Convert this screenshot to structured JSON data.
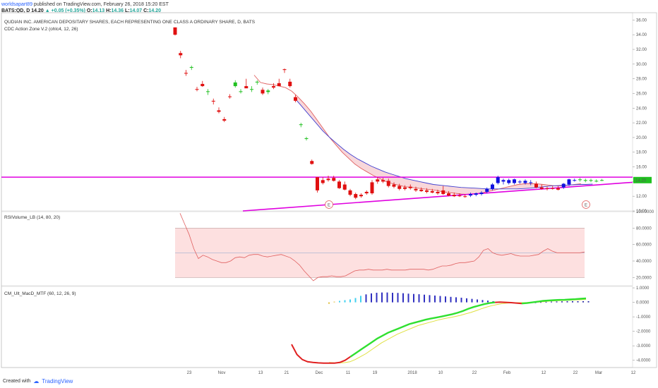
{
  "header": {
    "user": "worldsapart89",
    "published": "published on TradingView.com, February 26, 2018 15:20 EST",
    "symbol": "BATS:QD, D",
    "last": "14.20",
    "change_arrow": "▲",
    "change": "+0.05 (+0.35%)",
    "o_label": "O:",
    "o_val": "14.13",
    "h_label": "H:",
    "h_val": "14.36",
    "l_label": "L:",
    "l_val": "14.07",
    "c_label": "C:",
    "c_val": "14.20"
  },
  "footer": {
    "created_with": "Created with",
    "brand": "TradingView"
  },
  "colors": {
    "bull": "#1010e0",
    "bear": "#e01010",
    "neutral": "#20c020",
    "magenta": "#e000e0",
    "fill": "#f5c6cb",
    "fast": "#e06060",
    "slow": "#4040d0",
    "rsiband": "#fde0e0"
  },
  "chart_data": [
    {
      "type": "candlestick",
      "title": "QUDIAN INC. AMERICAN DEPOSITARY SHARES, EACH REPRESENTING ONE CLASS A ORDINARY SHARE, D, BATS",
      "indicator": "CDC Action Zone V.2 (ohlc4, 12, 26)",
      "ylim": [
        10,
        37
      ],
      "yticks": [
        "36.00",
        "34.00",
        "32.00",
        "30.00",
        "28.00",
        "26.00",
        "24.00",
        "22.00",
        "20.00",
        "18.00",
        "16.00",
        "14.00",
        "12.00",
        "10.00"
      ],
      "last_price_label": "14.20",
      "markers": [
        "E",
        "E"
      ],
      "candles": [
        [
          35.0,
          35.0,
          33.9,
          34.0
        ],
        [
          31.5,
          31.8,
          30.8,
          31.2
        ],
        [
          28.8,
          29.2,
          28.4,
          28.7
        ],
        [
          29.5,
          29.8,
          29.2,
          29.6
        ],
        [
          26.6,
          26.9,
          26.3,
          26.5
        ],
        [
          27.3,
          27.7,
          26.9,
          27.0
        ],
        [
          26.2,
          26.6,
          25.8,
          26.3
        ],
        [
          25.0,
          25.3,
          24.5,
          24.9
        ],
        [
          23.7,
          24.1,
          23.3,
          23.5
        ],
        [
          22.5,
          22.8,
          22.1,
          22.3
        ],
        [
          25.6,
          25.9,
          25.3,
          25.5
        ],
        [
          27.0,
          27.8,
          26.8,
          27.5
        ],
        [
          26.2,
          26.6,
          26.0,
          26.3
        ],
        [
          27.0,
          28.0,
          26.8,
          26.7
        ],
        [
          26.5,
          27.0,
          26.2,
          26.6
        ],
        [
          27.5,
          27.8,
          27.2,
          27.6
        ],
        [
          26.5,
          26.8,
          25.8,
          26.0
        ],
        [
          26.2,
          26.6,
          25.9,
          26.4
        ],
        [
          27.0,
          27.4,
          26.6,
          26.8
        ],
        [
          27.4,
          28.0,
          27.0,
          27.0
        ],
        [
          29.3,
          29.4,
          28.8,
          29.2
        ],
        [
          27.6,
          28.0,
          26.8,
          27.0
        ],
        [
          25.5,
          25.8,
          24.8,
          25.0
        ],
        [
          21.7,
          22.0,
          21.4,
          21.8
        ],
        [
          19.8,
          20.1,
          19.6,
          19.9
        ],
        [
          16.8,
          17.0,
          16.3,
          16.4
        ],
        [
          14.6,
          14.6,
          12.5,
          12.8
        ],
        [
          14.2,
          14.6,
          13.6,
          13.8
        ],
        [
          14.4,
          14.8,
          14.0,
          14.2
        ],
        [
          14.5,
          14.8,
          14.0,
          14.1
        ],
        [
          14.0,
          14.2,
          13.0,
          13.1
        ],
        [
          13.6,
          14.0,
          12.8,
          12.9
        ],
        [
          12.8,
          13.0,
          12.0,
          12.2
        ],
        [
          12.3,
          12.5,
          11.6,
          11.8
        ],
        [
          12.2,
          12.4,
          11.8,
          12.0
        ],
        [
          12.6,
          12.8,
          12.2,
          12.4
        ],
        [
          13.9,
          14.2,
          12.2,
          12.4
        ],
        [
          14.3,
          14.6,
          13.7,
          14.0
        ],
        [
          14.2,
          14.5,
          13.8,
          14.0
        ],
        [
          14.1,
          14.4,
          13.2,
          13.4
        ],
        [
          13.6,
          13.9,
          13.1,
          13.3
        ],
        [
          13.4,
          13.7,
          12.8,
          13.0
        ],
        [
          13.2,
          13.5,
          12.8,
          13.0
        ],
        [
          13.3,
          13.6,
          12.9,
          13.1
        ],
        [
          13.0,
          13.3,
          12.6,
          12.8
        ],
        [
          12.9,
          13.2,
          12.6,
          12.7
        ],
        [
          12.8,
          13.1,
          12.4,
          12.6
        ],
        [
          12.7,
          13.0,
          12.4,
          12.5
        ],
        [
          12.6,
          12.9,
          12.2,
          12.4
        ],
        [
          12.8,
          13.4,
          12.2,
          12.3
        ],
        [
          12.4,
          12.7,
          12.0,
          12.1
        ],
        [
          12.2,
          12.5,
          11.9,
          12.0
        ],
        [
          12.1,
          12.4,
          11.9,
          12.0
        ],
        [
          12.0,
          12.3,
          11.8,
          11.9
        ],
        [
          12.1,
          12.5,
          11.9,
          12.3
        ],
        [
          12.2,
          12.5,
          12.0,
          12.4
        ],
        [
          12.3,
          12.7,
          12.1,
          12.5
        ],
        [
          12.6,
          13.2,
          12.4,
          13.0
        ],
        [
          13.0,
          13.8,
          12.8,
          13.6
        ],
        [
          13.8,
          14.8,
          13.6,
          14.6
        ],
        [
          14.0,
          14.4,
          13.6,
          14.2
        ],
        [
          13.8,
          14.4,
          13.6,
          14.2
        ],
        [
          13.8,
          14.4,
          13.6,
          14.3
        ],
        [
          13.9,
          14.2,
          13.7,
          14.0
        ],
        [
          13.8,
          14.3,
          13.6,
          14.1
        ],
        [
          13.8,
          14.2,
          13.5,
          13.9
        ],
        [
          13.7,
          14.0,
          13.1,
          13.2
        ],
        [
          13.2,
          13.6,
          12.9,
          13.0
        ],
        [
          13.1,
          13.3,
          12.8,
          13.0
        ],
        [
          13.1,
          13.4,
          12.9,
          13.0
        ],
        [
          13.1,
          13.4,
          12.8,
          12.9
        ],
        [
          13.2,
          13.8,
          13.0,
          13.7
        ],
        [
          13.6,
          14.4,
          13.4,
          14.3
        ],
        [
          14.2,
          14.4,
          14.0,
          14.2
        ],
        [
          14.3,
          14.5,
          14.0,
          14.2
        ],
        [
          14.2,
          14.4,
          13.9,
          14.1
        ],
        [
          14.1,
          14.4,
          13.9,
          14.2
        ],
        [
          14.1,
          14.3,
          13.9,
          14.1
        ],
        [
          14.13,
          14.36,
          14.07,
          14.2
        ]
      ],
      "fast_ema": [
        28.5,
        27.5,
        27.3,
        27.2,
        27.0,
        26.8,
        26.3,
        25.5,
        24.6,
        23.6,
        22.4,
        21.2,
        20.0,
        19.0,
        18.0,
        17.2,
        16.4,
        15.8,
        15.3,
        14.8,
        14.4,
        14.0,
        13.7,
        13.5,
        13.3,
        13.2,
        13.1,
        13.0,
        12.9,
        12.8,
        12.6,
        12.5,
        12.4,
        12.3,
        12.25,
        12.3,
        12.4,
        12.6,
        12.8,
        13.0,
        13.2,
        13.4,
        13.6,
        13.7,
        13.7,
        13.7,
        13.6,
        13.5,
        13.4,
        13.4,
        13.5,
        13.6,
        13.7
      ],
      "slow_ema": [
        25.3,
        24.2,
        23.1,
        22.0,
        20.9,
        20.0,
        19.2,
        18.4,
        17.7,
        17.1,
        16.6,
        16.1,
        15.7,
        15.3,
        15.0,
        14.7,
        14.4,
        14.2,
        14.0,
        13.8,
        13.6,
        13.5,
        13.4,
        13.3,
        13.2,
        13.15,
        13.1,
        13.05,
        13.0,
        13.0,
        13.0,
        13.0,
        13.0,
        13.05,
        13.1,
        13.2,
        13.3,
        13.4,
        13.45,
        13.5,
        13.55,
        13.6,
        13.6,
        13.65
      ],
      "support_line": {
        "from": [
          12.2,
          10.0
        ],
        "to": [
          79.0,
          13.9
        ]
      },
      "resistance_line": {
        "value": 14.6
      }
    },
    {
      "type": "line",
      "title": "RSIVolume_LB (14, 80, 20)",
      "ylim": [
        10,
        100
      ],
      "yticks": [
        "100.0000",
        "80.0000",
        "60.0000",
        "40.0000",
        "20.0000"
      ],
      "bands": [
        80,
        50,
        20
      ],
      "values": [
        98,
        85,
        72,
        55,
        43,
        47,
        45,
        42,
        40,
        38,
        38,
        40,
        44,
        45,
        44,
        47,
        48,
        48,
        46,
        45,
        46,
        47,
        48,
        46,
        44,
        40,
        35,
        28,
        22,
        16,
        20,
        21,
        21,
        22,
        21,
        21,
        22,
        25,
        28,
        29,
        29,
        30,
        29,
        29,
        29,
        30,
        29,
        29,
        29,
        29,
        30,
        30,
        30,
        30,
        29,
        30,
        32,
        34,
        34,
        35,
        37,
        38,
        38,
        39,
        40,
        45,
        53,
        55,
        50,
        48,
        47,
        48,
        49,
        47,
        46,
        46,
        46,
        47,
        48,
        52,
        55,
        52,
        50,
        50,
        50,
        50,
        50,
        50,
        51
      ]
    },
    {
      "type": "line",
      "title": "CM_Ult_MacD_MTF (60, 12, 26, 9)",
      "ylim": [
        -4.5,
        1.1
      ],
      "yticks": [
        "1.0000",
        "0.0000",
        "-1.0000",
        "-2.0000",
        "-3.0000",
        "-4.0000"
      ],
      "macd": [
        -2.9,
        -3.6,
        -3.95,
        -4.1,
        -4.15,
        -4.18,
        -4.2,
        -4.2,
        -4.2,
        -4.15,
        -4.0,
        -3.75,
        -3.5,
        -3.25,
        -3.0,
        -2.75,
        -2.5,
        -2.3,
        -2.1,
        -1.95,
        -1.8,
        -1.65,
        -1.5,
        -1.4,
        -1.3,
        -1.2,
        -1.12,
        -1.05,
        -0.98,
        -0.9,
        -0.82,
        -0.72,
        -0.6,
        -0.45,
        -0.32,
        -0.22,
        -0.12,
        -0.05,
        0.0,
        0.02,
        0.0,
        -0.02,
        -0.05,
        -0.08,
        -0.05,
        0.0,
        0.05,
        0.1,
        0.13,
        0.15,
        0.17,
        0.18,
        0.2,
        0.22,
        0.25,
        0.27
      ],
      "signal": [
        -4.15,
        -4.17,
        -4.18,
        -4.16,
        -4.1,
        -3.95,
        -3.75,
        -3.55,
        -3.3,
        -3.05,
        -2.8,
        -2.6,
        -2.4,
        -2.2,
        -2.05,
        -1.9,
        -1.75,
        -1.6,
        -1.5,
        -1.4,
        -1.3,
        -1.2,
        -1.12,
        -1.05,
        -0.98,
        -0.9,
        -0.8,
        -0.7,
        -0.58,
        -0.45,
        -0.33,
        -0.23,
        -0.15,
        -0.09,
        -0.05,
        -0.03,
        -0.02,
        -0.02,
        -0.01,
        0.0,
        0.02,
        0.05,
        0.08,
        0.1,
        0.12,
        0.13,
        0.15,
        0.17,
        0.18,
        0.2
      ],
      "histogram": [
        -0.1,
        0.05,
        0.1,
        0.15,
        0.2,
        0.3,
        0.45,
        0.55,
        0.62,
        0.66,
        0.68,
        0.68,
        0.66,
        0.65,
        0.63,
        0.6,
        0.58,
        0.56,
        0.53,
        0.5,
        0.47,
        0.44,
        0.41,
        0.38,
        0.35,
        0.32,
        0.28,
        0.24,
        0.2,
        0.16,
        0.12,
        0.08,
        0.05,
        0.03,
        0.01,
        -0.01,
        -0.02,
        -0.03,
        -0.02,
        0.0,
        0.02,
        0.04,
        0.05,
        0.06,
        0.07,
        0.08,
        0.08,
        0.08,
        0.08,
        0.08
      ]
    }
  ],
  "x_axis": {
    "labels": [
      "23",
      "Nov",
      "13",
      "21",
      "Dec",
      "11",
      "19",
      "2018",
      "10",
      "22",
      "Feb",
      "12",
      "22",
      "Mar",
      "12"
    ]
  }
}
